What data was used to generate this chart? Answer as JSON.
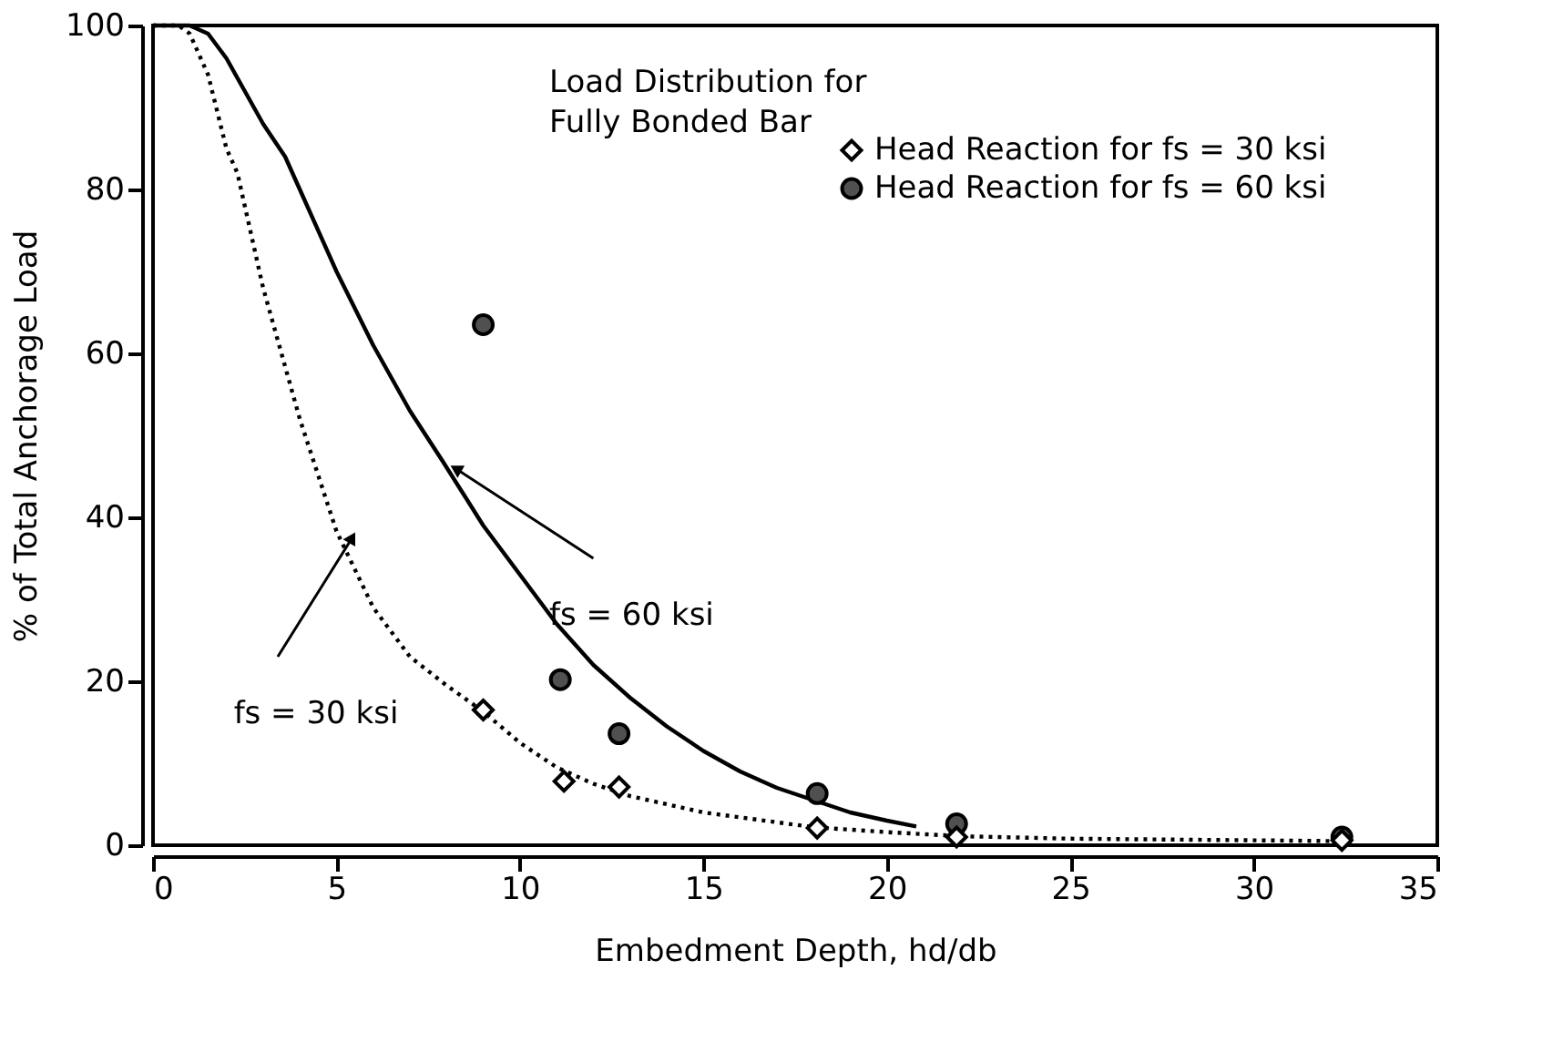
{
  "chart_data": {
    "type": "line",
    "xlabel": "Embedment Depth, hd/db",
    "ylabel": "% of Total Anchorage Load",
    "xlim": [
      0,
      35
    ],
    "ylim": [
      0,
      100
    ],
    "xticks": [
      0,
      5,
      10,
      15,
      20,
      25,
      30,
      35
    ],
    "yticks": [
      0,
      20,
      40,
      60,
      80,
      100
    ],
    "grid": false,
    "legend": "top right",
    "series": [
      {
        "line_style": "solid",
        "color": "#000000",
        "x": [
          0,
          1,
          1.5,
          2,
          2.5,
          3,
          3.6,
          4,
          5,
          6,
          7,
          7.9,
          9,
          10,
          11,
          12,
          13,
          14,
          15,
          16,
          17,
          18,
          19,
          20,
          20.8
        ],
        "values": [
          100,
          100,
          99,
          96,
          92,
          88,
          84,
          80,
          70,
          61,
          53,
          46.8,
          39,
          33,
          27,
          22,
          18,
          14.5,
          11.5,
          9,
          7,
          5.5,
          4,
          3,
          2.3
        ]
      },
      {
        "line_style": "dotted",
        "color": "#000000",
        "x": [
          0,
          0.7,
          1,
          1.5,
          2,
          2.3,
          3,
          4,
          5,
          6,
          7,
          8,
          9,
          10,
          11,
          12,
          13,
          15,
          18,
          20,
          22,
          25,
          30,
          32.4
        ],
        "values": [
          100,
          100,
          99,
          94,
          85,
          82,
          68,
          52,
          38.3,
          29,
          23,
          19.5,
          16.3,
          12.5,
          9.5,
          7.5,
          6,
          4,
          2.2,
          1.6,
          1.1,
          0.8,
          0.6,
          0.5
        ]
      },
      {
        "type": "scatter",
        "name": "Head Reaction for fs = 30 ksi",
        "marker": "diamond",
        "color": "#000000",
        "x": [
          9,
          11.2,
          12.7,
          18.1,
          21.9,
          32.4
        ],
        "values": [
          16.5,
          7.8,
          7.1,
          2.1,
          1.0,
          0.6
        ]
      },
      {
        "type": "scatter",
        "name": "Head Reaction for fs = 60 ksi",
        "marker": "circle",
        "color": "#505050",
        "x": [
          9,
          11.1,
          12.7,
          18.1,
          21.9,
          32.4
        ],
        "values": [
          63.5,
          20.2,
          13.6,
          6.3,
          2.6,
          1.0
        ]
      }
    ],
    "annotations": [
      "Load Distribution for\nFully Bonded Bar",
      {
        "text": "fs = 60 ksi",
        "x": 7.9,
        "y": 46.8
      },
      {
        "text": "fs = 30 ksi",
        "x": 5.0,
        "y": 38.3
      }
    ]
  }
}
